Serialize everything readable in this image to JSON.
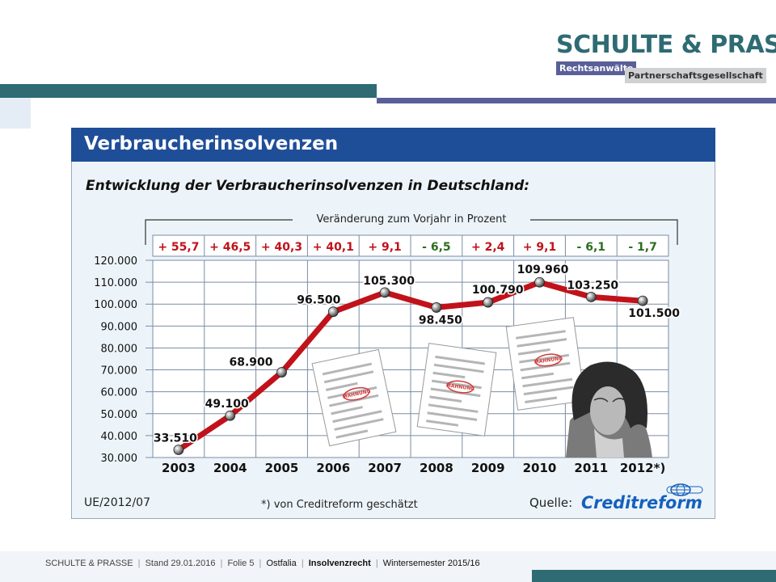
{
  "header": {
    "logo_name": "SCHULTE & PRASSE",
    "logo_sub1": "Rechtsanwälte",
    "logo_sub2": "Partnerschaftsgesellschaft"
  },
  "colors": {
    "teal": "#2e6b73",
    "navy": "#5a5f99",
    "title_blue": "#1f4e99",
    "line_red": "#c1121a",
    "creditreform_blue": "#1560bd"
  },
  "panel": {
    "title": "Verbraucherinsolvenzen",
    "subtitle": "Entwicklung der Verbraucherinsolvenzen in Deutschland:",
    "change_caption": "Veränderung zum Vorjahr in Prozent",
    "changes": [
      "+ 55,7",
      "+ 46,5",
      "+ 40,3",
      "+ 40,1",
      "+ 9,1",
      "- 6,5",
      "+ 2,4",
      "+ 9,1",
      "- 6,1",
      "- 1,7"
    ],
    "change_colors": [
      "#c1121a",
      "#c1121a",
      "#c1121a",
      "#c1121a",
      "#c1121a",
      "#2c6e1f",
      "#c1121a",
      "#c1121a",
      "#2c6e1f",
      "#2c6e1f"
    ],
    "ref": "UE/2012/07",
    "footnote": "*) von Creditreform geschätzt",
    "source_label": "Quelle:",
    "source_name": "Creditreform",
    "stamp_text": "MAHNUNG"
  },
  "chart_data": {
    "type": "line",
    "title": "Entwicklung der Verbraucherinsolvenzen in Deutschland:",
    "categories": [
      "2003",
      "2004",
      "2005",
      "2006",
      "2007",
      "2008",
      "2009",
      "2010",
      "2011",
      "2012*)"
    ],
    "values": [
      33510,
      49100,
      68900,
      96500,
      105300,
      98450,
      100790,
      109960,
      103250,
      101500
    ],
    "data_labels": [
      "33.510",
      "49.100",
      "68.900",
      "96.500",
      "105.300",
      "98.450",
      "100.790",
      "109.960",
      "103.250",
      "101.500"
    ],
    "y_ticks": [
      "120.000",
      "110.000",
      "100.000",
      "90.000",
      "80.000",
      "70.000",
      "60.000",
      "50.000",
      "40.000",
      "30.000"
    ],
    "ylim": [
      30000,
      120000
    ],
    "grid": true,
    "xlabel": "",
    "ylabel": ""
  },
  "footer": {
    "firm": "SCHULTE & PRASSE",
    "stand": "Stand 29.01.2016",
    "folie": "Folie  5",
    "ostfalia": "Ostfalia",
    "topic": "Insolvenzrecht",
    "semester": "Wintersemester 2015/16",
    "sep": "|"
  }
}
